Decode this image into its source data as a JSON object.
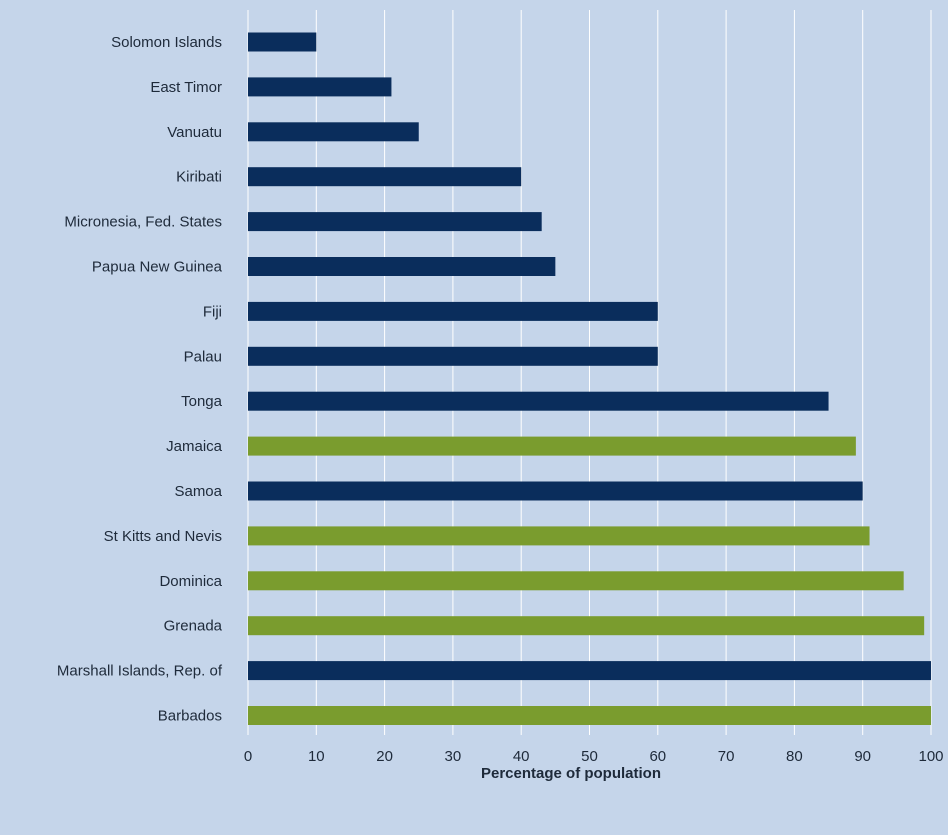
{
  "chart_data": {
    "type": "bar",
    "orientation": "horizontal",
    "title": "",
    "xlabel": "Percentage of population",
    "ylabel": "",
    "xlim": [
      0,
      100
    ],
    "xticks": [
      0,
      10,
      20,
      30,
      40,
      50,
      60,
      70,
      80,
      90,
      100
    ],
    "grid": "vertical",
    "legend": "none",
    "categories": [
      "Solomon Islands",
      "East Timor",
      "Vanuatu",
      "Kiribati",
      "Micronesia, Fed. States",
      "Papua New Guinea",
      "Fiji",
      "Palau",
      "Tonga",
      "Jamaica",
      "Samoa",
      "St Kitts and Nevis",
      "Dominica",
      "Grenada",
      "Marshall Islands, Rep. of",
      "Barbados"
    ],
    "values": [
      10,
      21,
      25,
      40,
      43,
      45,
      60,
      60,
      85,
      89,
      90,
      91,
      96,
      99,
      100,
      100
    ],
    "bar_colors": [
      "#0a2d5c",
      "#0a2d5c",
      "#0a2d5c",
      "#0a2d5c",
      "#0a2d5c",
      "#0a2d5c",
      "#0a2d5c",
      "#0a2d5c",
      "#0a2d5c",
      "#7a9c2e",
      "#0a2d5c",
      "#7a9c2e",
      "#7a9c2e",
      "#7a9c2e",
      "#0a2d5c",
      "#7a9c2e"
    ],
    "colors": {
      "background": "#c5d5ea",
      "grid": "#ffffff",
      "text": "#1e2a3a"
    }
  }
}
